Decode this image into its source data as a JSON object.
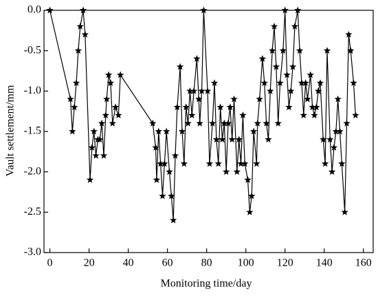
{
  "chart_data": {
    "type": "line",
    "x_label": "Monitoring time/day",
    "y_label": "Vault settlement/mm",
    "x": [
      0,
      10.5,
      11.5,
      12.5,
      13.5,
      14.5,
      15.5,
      17,
      18,
      20.5,
      21.5,
      22.5,
      23.5,
      24.5,
      25.5,
      26.5,
      27.5,
      28.5,
      29,
      30,
      31,
      32,
      33.5,
      35,
      36,
      52.5,
      54,
      54.5,
      55.5,
      56.5,
      57.5,
      58.5,
      59.5,
      61,
      62,
      63,
      64,
      65,
      66.5,
      67.5,
      68.5,
      69.5,
      70.5,
      71.5,
      72.5,
      73.5,
      75,
      76,
      76.5,
      77.5,
      78.5,
      80.5,
      81.5,
      83,
      84,
      85,
      86,
      87,
      88,
      89,
      90,
      91,
      92,
      93,
      94,
      95.5,
      96.5,
      97.5,
      98.5,
      99.5,
      101,
      102,
      103,
      104,
      105.5,
      106,
      107,
      108.5,
      109.5,
      110.5,
      111.5,
      112.5,
      113.5,
      114.5,
      115.5,
      116.5,
      117.5,
      119,
      120,
      121,
      122,
      123,
      124,
      125,
      126.5,
      127.5,
      128.5,
      129.5,
      130.5,
      131.5,
      133,
      134,
      135,
      136,
      137,
      138,
      139.5,
      140.5,
      141.5,
      143,
      144,
      145,
      146,
      147,
      148,
      149,
      150.5,
      151.5,
      152.5,
      153.5,
      155,
      156
    ],
    "series": [
      {
        "color": "#000000",
        "values": [
          0,
          -1.1,
          -1.5,
          -1.2,
          -0.9,
          -0.5,
          -0.2,
          0,
          -0.3,
          -2.1,
          -1.7,
          -1.5,
          -1.8,
          -1.6,
          -1.6,
          -1.4,
          -1.8,
          -1.3,
          -1.1,
          -0.8,
          -0.9,
          -1.4,
          -1.2,
          -1.3,
          -0.8,
          -1.4,
          -1.7,
          -2.1,
          -1.5,
          -1.9,
          -2.3,
          -1.9,
          -1.5,
          -2.0,
          -2.3,
          -2.6,
          -1.8,
          -1.2,
          -0.7,
          -1.5,
          -1.9,
          -1.2,
          -1.4,
          -1.0,
          -1.3,
          -1.0,
          -0.6,
          -1.1,
          -1.4,
          -1.0,
          0,
          -1.0,
          -1.9,
          -1.4,
          -0.9,
          -1.6,
          -1.9,
          -1.2,
          -1.6,
          -1.4,
          -2.0,
          -1.4,
          -1.2,
          -1.6,
          -1.1,
          -2.0,
          -1.6,
          -1.9,
          -1.3,
          -1.9,
          -2.1,
          -2.5,
          -2.3,
          -1.5,
          -1.9,
          -1.4,
          -1.1,
          -0.6,
          -0.9,
          -1.4,
          -1.6,
          -1.0,
          -0.5,
          -0.2,
          -0.7,
          -1.4,
          -0.9,
          -0.5,
          0,
          -0.8,
          -1.2,
          -1.0,
          -0.7,
          -0.2,
          0,
          -0.5,
          -0.9,
          -1.3,
          -0.9,
          -1.1,
          -0.8,
          -1.2,
          -1.3,
          -1.2,
          -1.0,
          -0.9,
          -1.6,
          -1.9,
          -0.5,
          -1.6,
          -2.0,
          -1.7,
          -1.5,
          -1.1,
          -1.5,
          -1.9,
          -2.5,
          -1.4,
          -0.3,
          -0.5,
          -0.9,
          -1.3
        ]
      }
    ],
    "marker": "star",
    "xlim": [
      -3,
      165
    ],
    "xticks": [
      0,
      20,
      40,
      60,
      80,
      100,
      120,
      140,
      160
    ],
    "ylim": [
      -3,
      0
    ],
    "yticks": [
      {
        "value": -3,
        "label": "-3.0"
      },
      -2.5,
      {
        "value": -2,
        "label": "-2.0"
      },
      -1.5,
      {
        "value": -1,
        "label": "-1.0"
      },
      -0.5,
      {
        "value": 0,
        "label": "0.0"
      }
    ]
  }
}
